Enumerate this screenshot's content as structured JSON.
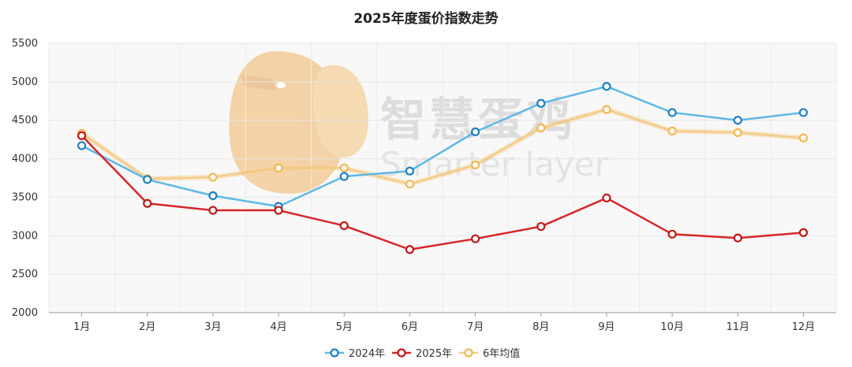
{
  "chart_data": {
    "type": "line",
    "title": "2025年度蛋价指数走势",
    "xlabel": "",
    "ylabel": "",
    "categories": [
      "1月",
      "2月",
      "3月",
      "4月",
      "5月",
      "6月",
      "7月",
      "8月",
      "9月",
      "10月",
      "11月",
      "12月"
    ],
    "ylim": [
      2000,
      5500
    ],
    "yticks": [
      2000,
      2500,
      3000,
      3500,
      4000,
      4500,
      5000,
      5500
    ],
    "grid": true,
    "legend_position": "bottom",
    "series": [
      {
        "name": "2024年",
        "color": "#5fb8e6",
        "marker_color": "#1f7fc0",
        "values": [
          4170,
          3730,
          3520,
          3380,
          3770,
          3840,
          4350,
          4720,
          4940,
          4600,
          4500,
          4600
        ]
      },
      {
        "name": "2025年",
        "color": "#d62728",
        "marker_color": "#c01818",
        "values": [
          4300,
          3420,
          3330,
          3330,
          3130,
          2820,
          2960,
          3120,
          3490,
          3020,
          2970,
          3040
        ]
      },
      {
        "name": "6年均值",
        "color": "#f5cf8a",
        "marker_color": "#f0b850",
        "values": [
          4330,
          3740,
          3760,
          3880,
          3880,
          3670,
          3920,
          4400,
          4640,
          4360,
          4340,
          4270
        ]
      }
    ]
  },
  "watermark": {
    "text_cn": "智慧蛋鸡",
    "text_en": "Smarter layer",
    "logo_icon": "egg-chicken-logo"
  }
}
